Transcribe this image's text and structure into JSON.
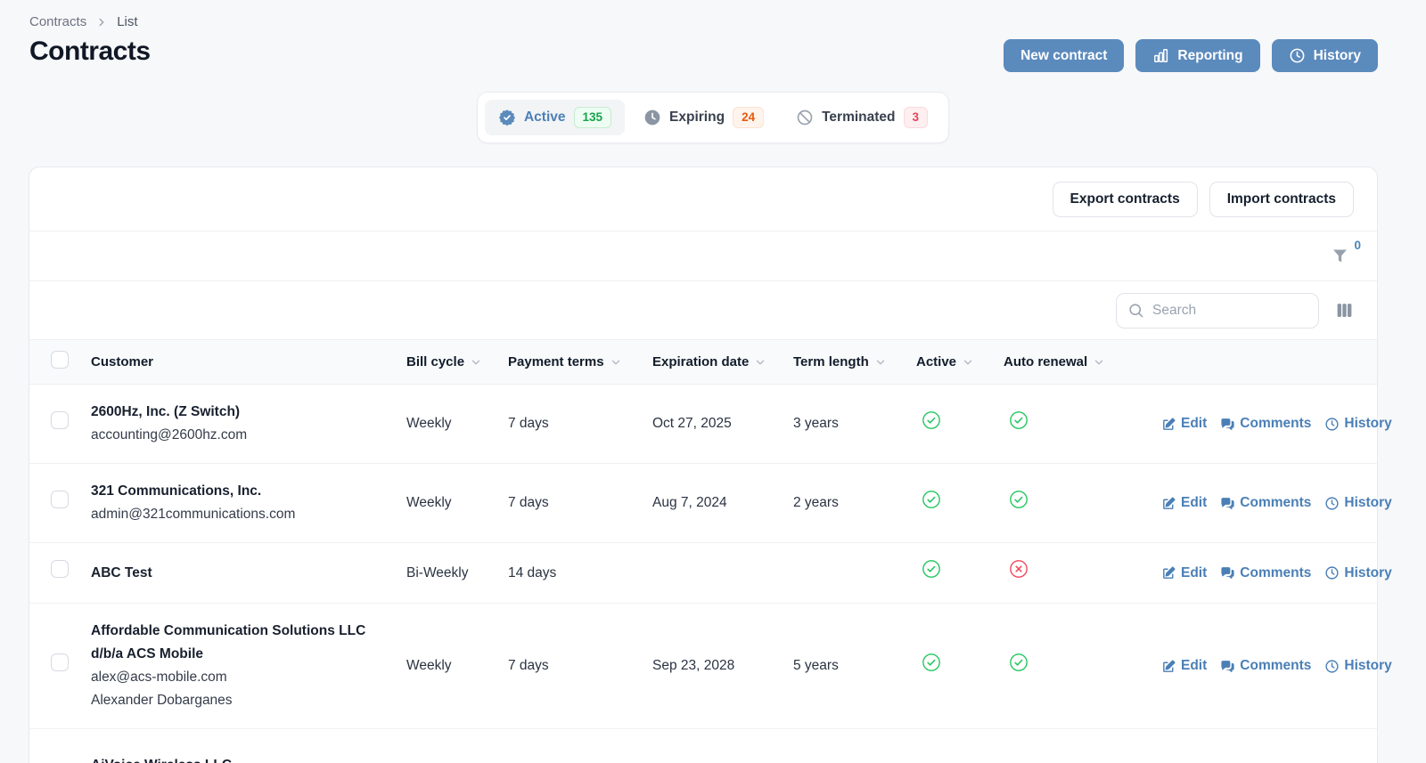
{
  "breadcrumb": {
    "root": "Contracts",
    "leaf": "List"
  },
  "page": {
    "title": "Contracts"
  },
  "header_actions": {
    "new_contract": "New contract",
    "reporting": "Reporting",
    "history": "History"
  },
  "tabs": [
    {
      "label": "Active",
      "count": "135",
      "icon": "verified-badge-icon",
      "selected": true
    },
    {
      "label": "Expiring",
      "count": "24",
      "icon": "clock-icon",
      "selected": false
    },
    {
      "label": "Terminated",
      "count": "3",
      "icon": "no-symbol-icon",
      "selected": false
    }
  ],
  "toolbar": {
    "export_label": "Export contracts",
    "import_label": "Import contracts"
  },
  "filter": {
    "count": "0"
  },
  "search": {
    "placeholder": "Search"
  },
  "table": {
    "columns": [
      {
        "label": "Customer",
        "sortable": false
      },
      {
        "label": "Bill cycle",
        "sortable": true
      },
      {
        "label": "Payment terms",
        "sortable": true
      },
      {
        "label": "Expiration date",
        "sortable": true
      },
      {
        "label": "Term length",
        "sortable": true
      },
      {
        "label": "Active",
        "sortable": true
      },
      {
        "label": "Auto renewal",
        "sortable": true
      }
    ],
    "actions": {
      "edit": "Edit",
      "comments": "Comments",
      "history": "History"
    },
    "rows": [
      {
        "name": "2600Hz, Inc. (Z Switch)",
        "sub": [
          "accounting@2600hz.com"
        ],
        "bill": "Weekly",
        "terms": "7 days",
        "expiration": "Oct 27, 2025",
        "term": "3 years",
        "active": "yes",
        "renewal": "yes"
      },
      {
        "name": "321 Communications, Inc.",
        "sub": [
          "admin@321communications.com"
        ],
        "bill": "Weekly",
        "terms": "7 days",
        "expiration": "Aug 7, 2024",
        "term": "2 years",
        "active": "yes",
        "renewal": "yes"
      },
      {
        "name": "ABC Test",
        "sub": [],
        "bill": "Bi-Weekly",
        "terms": "14 days",
        "expiration": "",
        "term": "",
        "active": "yes",
        "renewal": "no"
      },
      {
        "name": "Affordable Communication Solutions LLC d/b/a ACS Mobile",
        "sub": [
          "alex@acs-mobile.com",
          "Alexander Dobarganes"
        ],
        "bill": "Weekly",
        "terms": "7 days",
        "expiration": "Sep 23, 2028",
        "term": "5 years",
        "active": "yes",
        "renewal": "yes"
      },
      {
        "name": "AiVoice Wireless LLC",
        "sub": [],
        "bill": "",
        "terms": "",
        "expiration": "",
        "term": "",
        "active": "",
        "renewal": "",
        "partial": true
      }
    ]
  },
  "colors": {
    "accent_blue": "#5b8abd",
    "link_blue": "#4a7fb6",
    "success_green": "#22c55e",
    "danger_red": "#f3455c",
    "warning_orange": "#ea580c"
  }
}
